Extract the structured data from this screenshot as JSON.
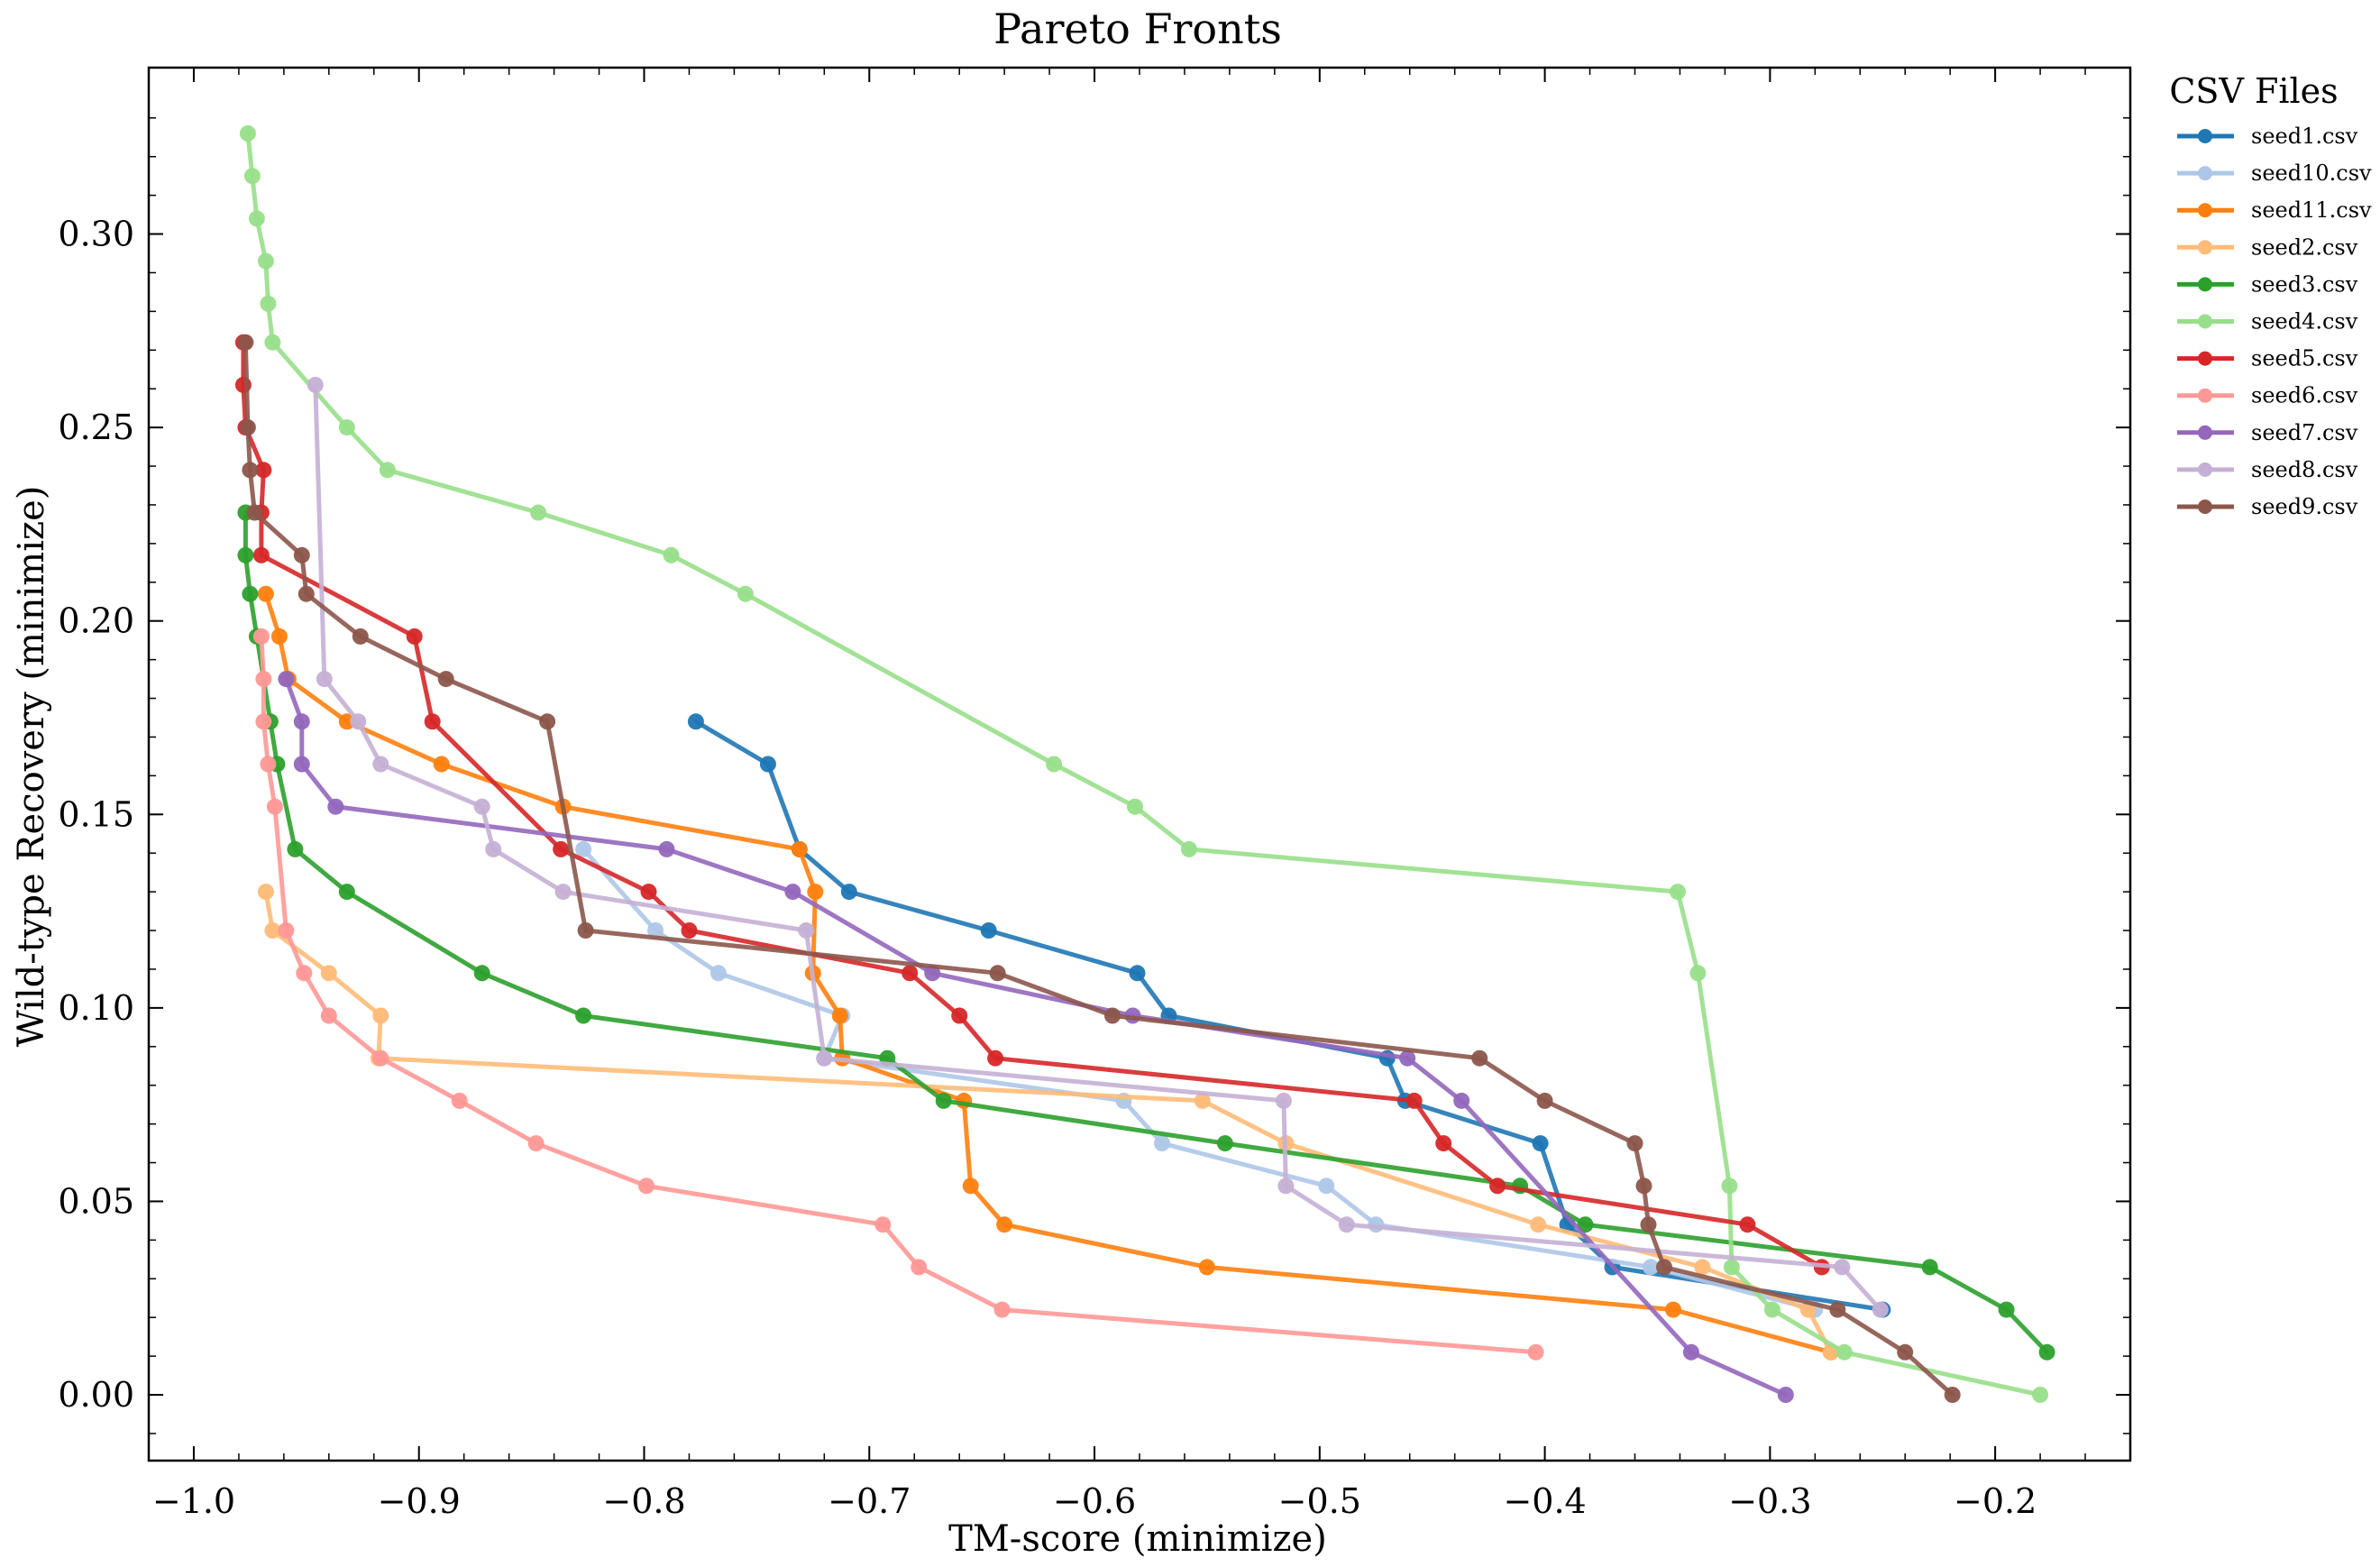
{
  "chart_data": {
    "type": "line",
    "title": "Pareto Fronts",
    "xlabel": "TM-score (minimize)",
    "ylabel": "Wild-type Recovery (minimize)",
    "xlim": [
      -1.02,
      -0.14
    ],
    "ylim": [
      -0.017,
      0.343
    ],
    "xticks": [
      -1.0,
      -0.9,
      -0.8,
      -0.7,
      -0.6,
      -0.5,
      -0.4,
      -0.3,
      -0.2
    ],
    "xtick_labels": [
      "−1.0",
      "−0.9",
      "−0.8",
      "−0.7",
      "−0.6",
      "−0.5",
      "−0.4",
      "−0.3",
      "−0.2"
    ],
    "yticks": [
      0.0,
      0.05,
      0.1,
      0.15,
      0.2,
      0.25,
      0.3
    ],
    "ytick_labels": [
      "0.00",
      "0.05",
      "0.10",
      "0.15",
      "0.20",
      "0.25",
      "0.30"
    ],
    "grid": false,
    "legend": {
      "title": "CSV Files",
      "placement": "outside-right"
    },
    "series": [
      {
        "name": "seed1.csv",
        "color": "#1f77b4",
        "points": [
          [
            -0.777,
            0.174
          ],
          [
            -0.745,
            0.163
          ],
          [
            -0.731,
            0.141
          ],
          [
            -0.709,
            0.13
          ],
          [
            -0.647,
            0.12
          ],
          [
            -0.581,
            0.109
          ],
          [
            -0.567,
            0.098
          ],
          [
            -0.47,
            0.087
          ],
          [
            -0.462,
            0.076
          ],
          [
            -0.402,
            0.065
          ],
          [
            -0.39,
            0.044
          ],
          [
            -0.37,
            0.033
          ],
          [
            -0.25,
            0.022
          ]
        ]
      },
      {
        "name": "seed10.csv",
        "color": "#aec7e8",
        "points": [
          [
            -0.827,
            0.141
          ],
          [
            -0.795,
            0.12
          ],
          [
            -0.767,
            0.109
          ],
          [
            -0.712,
            0.098
          ],
          [
            -0.72,
            0.087
          ],
          [
            -0.587,
            0.076
          ],
          [
            -0.57,
            0.065
          ],
          [
            -0.497,
            0.054
          ],
          [
            -0.475,
            0.044
          ],
          [
            -0.353,
            0.033
          ],
          [
            -0.28,
            0.022
          ]
        ]
      },
      {
        "name": "seed11.csv",
        "color": "#ff7f0e",
        "points": [
          [
            -0.968,
            0.207
          ],
          [
            -0.962,
            0.196
          ],
          [
            -0.958,
            0.185
          ],
          [
            -0.932,
            0.174
          ],
          [
            -0.89,
            0.163
          ],
          [
            -0.836,
            0.152
          ],
          [
            -0.731,
            0.141
          ],
          [
            -0.724,
            0.13
          ],
          [
            -0.725,
            0.109
          ],
          [
            -0.713,
            0.098
          ],
          [
            -0.712,
            0.087
          ],
          [
            -0.658,
            0.076
          ],
          [
            -0.655,
            0.054
          ],
          [
            -0.64,
            0.044
          ],
          [
            -0.55,
            0.033
          ],
          [
            -0.343,
            0.022
          ],
          [
            -0.273,
            0.011
          ]
        ]
      },
      {
        "name": "seed2.csv",
        "color": "#ffbb78",
        "points": [
          [
            -0.968,
            0.13
          ],
          [
            -0.965,
            0.12
          ],
          [
            -0.94,
            0.109
          ],
          [
            -0.917,
            0.098
          ],
          [
            -0.918,
            0.087
          ],
          [
            -0.552,
            0.076
          ],
          [
            -0.515,
            0.065
          ],
          [
            -0.403,
            0.044
          ],
          [
            -0.33,
            0.033
          ],
          [
            -0.283,
            0.022
          ],
          [
            -0.273,
            0.011
          ]
        ]
      },
      {
        "name": "seed3.csv",
        "color": "#2ca02c",
        "points": [
          [
            -0.977,
            0.228
          ],
          [
            -0.977,
            0.217
          ],
          [
            -0.975,
            0.207
          ],
          [
            -0.972,
            0.196
          ],
          [
            -0.966,
            0.174
          ],
          [
            -0.963,
            0.163
          ],
          [
            -0.955,
            0.141
          ],
          [
            -0.932,
            0.13
          ],
          [
            -0.872,
            0.109
          ],
          [
            -0.827,
            0.098
          ],
          [
            -0.692,
            0.087
          ],
          [
            -0.667,
            0.076
          ],
          [
            -0.542,
            0.065
          ],
          [
            -0.411,
            0.054
          ],
          [
            -0.382,
            0.044
          ],
          [
            -0.229,
            0.033
          ],
          [
            -0.195,
            0.022
          ],
          [
            -0.177,
            0.011
          ]
        ]
      },
      {
        "name": "seed4.csv",
        "color": "#98df8a",
        "points": [
          [
            -0.976,
            0.326
          ],
          [
            -0.974,
            0.315
          ],
          [
            -0.972,
            0.304
          ],
          [
            -0.968,
            0.293
          ],
          [
            -0.967,
            0.282
          ],
          [
            -0.965,
            0.272
          ],
          [
            -0.932,
            0.25
          ],
          [
            -0.914,
            0.239
          ],
          [
            -0.847,
            0.228
          ],
          [
            -0.788,
            0.217
          ],
          [
            -0.755,
            0.207
          ],
          [
            -0.618,
            0.163
          ],
          [
            -0.582,
            0.152
          ],
          [
            -0.558,
            0.141
          ],
          [
            -0.341,
            0.13
          ],
          [
            -0.332,
            0.109
          ],
          [
            -0.318,
            0.054
          ],
          [
            -0.317,
            0.033
          ],
          [
            -0.299,
            0.022
          ],
          [
            -0.267,
            0.011
          ],
          [
            -0.18,
            0.0
          ]
        ]
      },
      {
        "name": "seed5.csv",
        "color": "#d62728",
        "points": [
          [
            -0.978,
            0.272
          ],
          [
            -0.978,
            0.261
          ],
          [
            -0.977,
            0.25
          ],
          [
            -0.969,
            0.239
          ],
          [
            -0.97,
            0.228
          ],
          [
            -0.97,
            0.217
          ],
          [
            -0.902,
            0.196
          ],
          [
            -0.894,
            0.174
          ],
          [
            -0.837,
            0.141
          ],
          [
            -0.798,
            0.13
          ],
          [
            -0.78,
            0.12
          ],
          [
            -0.682,
            0.109
          ],
          [
            -0.66,
            0.098
          ],
          [
            -0.644,
            0.087
          ],
          [
            -0.458,
            0.076
          ],
          [
            -0.445,
            0.065
          ],
          [
            -0.421,
            0.054
          ],
          [
            -0.31,
            0.044
          ],
          [
            -0.277,
            0.033
          ]
        ]
      },
      {
        "name": "seed6.csv",
        "color": "#ff9896",
        "points": [
          [
            -0.97,
            0.196
          ],
          [
            -0.969,
            0.185
          ],
          [
            -0.969,
            0.174
          ],
          [
            -0.967,
            0.163
          ],
          [
            -0.964,
            0.152
          ],
          [
            -0.959,
            0.12
          ],
          [
            -0.951,
            0.109
          ],
          [
            -0.94,
            0.098
          ],
          [
            -0.917,
            0.087
          ],
          [
            -0.882,
            0.076
          ],
          [
            -0.848,
            0.065
          ],
          [
            -0.799,
            0.054
          ],
          [
            -0.694,
            0.044
          ],
          [
            -0.678,
            0.033
          ],
          [
            -0.641,
            0.022
          ],
          [
            -0.404,
            0.011
          ]
        ]
      },
      {
        "name": "seed7.csv",
        "color": "#9467bd",
        "points": [
          [
            -0.959,
            0.185
          ],
          [
            -0.952,
            0.174
          ],
          [
            -0.952,
            0.163
          ],
          [
            -0.937,
            0.152
          ],
          [
            -0.79,
            0.141
          ],
          [
            -0.734,
            0.13
          ],
          [
            -0.672,
            0.109
          ],
          [
            -0.583,
            0.098
          ],
          [
            -0.461,
            0.087
          ],
          [
            -0.437,
            0.076
          ],
          [
            -0.335,
            0.011
          ],
          [
            -0.293,
            0.0
          ]
        ]
      },
      {
        "name": "seed8.csv",
        "color": "#c5b0d5",
        "points": [
          [
            -0.946,
            0.261
          ],
          [
            -0.942,
            0.185
          ],
          [
            -0.927,
            0.174
          ],
          [
            -0.917,
            0.163
          ],
          [
            -0.872,
            0.152
          ],
          [
            -0.867,
            0.141
          ],
          [
            -0.836,
            0.13
          ],
          [
            -0.728,
            0.12
          ],
          [
            -0.72,
            0.087
          ],
          [
            -0.516,
            0.076
          ],
          [
            -0.515,
            0.054
          ],
          [
            -0.488,
            0.044
          ],
          [
            -0.268,
            0.033
          ],
          [
            -0.251,
            0.022
          ]
        ]
      },
      {
        "name": "seed9.csv",
        "color": "#8c564b",
        "points": [
          [
            -0.977,
            0.272
          ],
          [
            -0.976,
            0.25
          ],
          [
            -0.975,
            0.239
          ],
          [
            -0.973,
            0.228
          ],
          [
            -0.952,
            0.217
          ],
          [
            -0.95,
            0.207
          ],
          [
            -0.926,
            0.196
          ],
          [
            -0.888,
            0.185
          ],
          [
            -0.843,
            0.174
          ],
          [
            -0.826,
            0.12
          ],
          [
            -0.643,
            0.109
          ],
          [
            -0.592,
            0.098
          ],
          [
            -0.429,
            0.087
          ],
          [
            -0.4,
            0.076
          ],
          [
            -0.36,
            0.065
          ],
          [
            -0.356,
            0.054
          ],
          [
            -0.354,
            0.044
          ],
          [
            -0.347,
            0.033
          ],
          [
            -0.27,
            0.022
          ],
          [
            -0.24,
            0.011
          ],
          [
            -0.219,
            0.0
          ]
        ]
      }
    ]
  }
}
